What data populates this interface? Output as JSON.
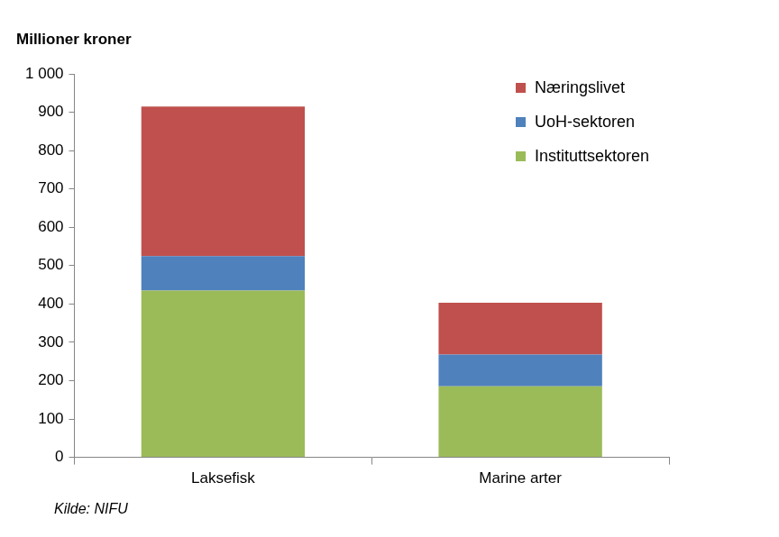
{
  "chart_data": {
    "type": "bar",
    "stacked": true,
    "ylabel": "Millioner kroner",
    "annotations": [
      "Kilde: NIFU"
    ],
    "categories": [
      "Laksefisk",
      "Marine arter"
    ],
    "series": [
      {
        "name": "Instituttsektoren",
        "color": "#9bbb59",
        "values": [
          435,
          185
        ]
      },
      {
        "name": "UoH-sektoren",
        "color": "#4f81bd",
        "values": [
          90,
          83
        ]
      },
      {
        "name": "Næringslivet",
        "color": "#c0504d",
        "values": [
          390,
          135
        ]
      }
    ],
    "ylim": [
      0,
      1000
    ],
    "yticks": [
      0,
      100,
      200,
      300,
      400,
      500,
      600,
      700,
      800,
      900,
      {
        "value": 1000,
        "label": "1 000"
      }
    ],
    "grid": false,
    "legend": "upper right"
  }
}
